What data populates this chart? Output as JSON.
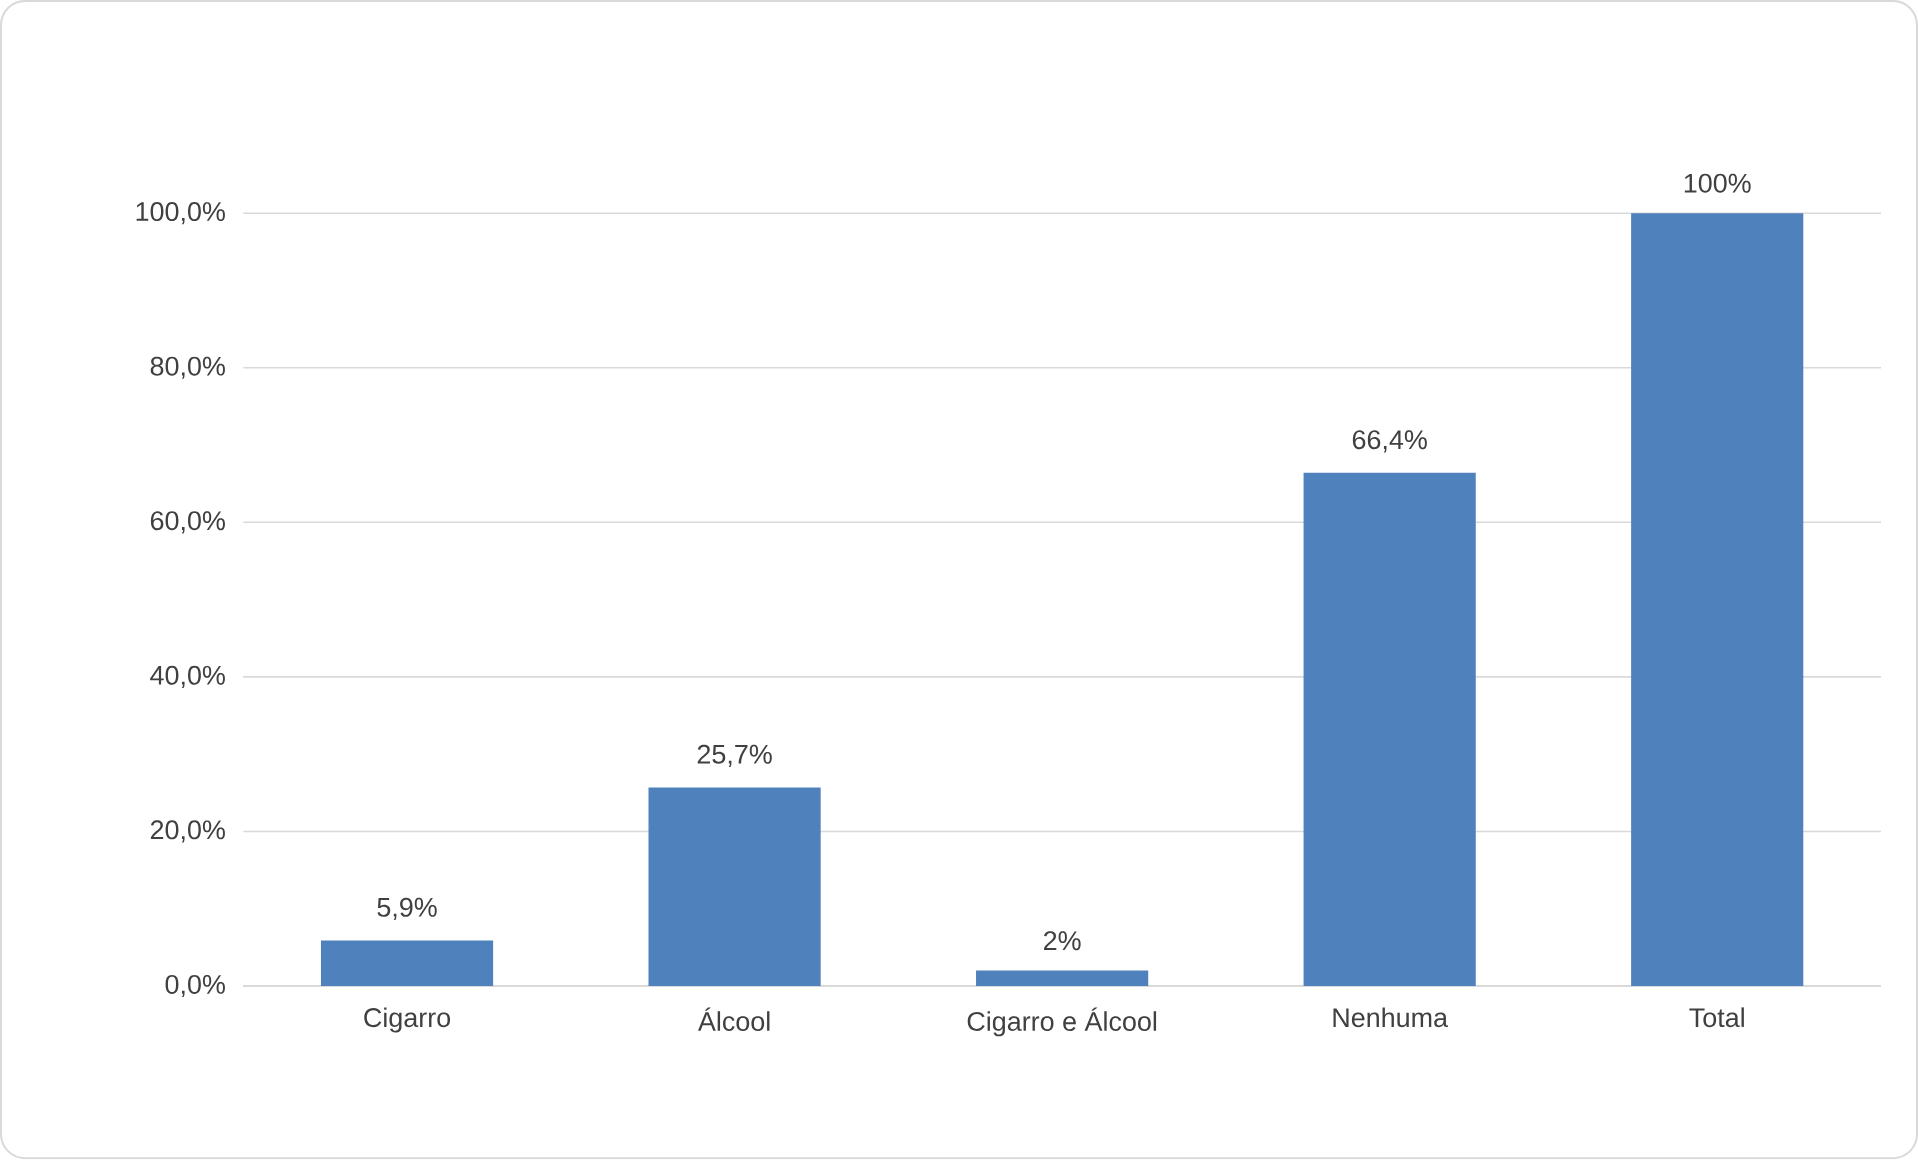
{
  "chart_data": {
    "type": "bar",
    "categories": [
      "Cigarro",
      "Álcool",
      "Cigarro e Álcool",
      "Nenhuma",
      "Total"
    ],
    "values": [
      5.9,
      25.7,
      2,
      66.4,
      100
    ],
    "value_labels": [
      "5,9%",
      "25,7%",
      "2%",
      "66,4%",
      "100%"
    ],
    "color": "#4f81bd",
    "ylim": [
      0,
      100
    ],
    "yticks": [
      {
        "value": 0,
        "label": "0,0%"
      },
      {
        "value": 20,
        "label": "20,0%"
      },
      {
        "value": 40,
        "label": "40,0%"
      },
      {
        "value": 60,
        "label": "60,0%"
      },
      {
        "value": 80,
        "label": "80,0%"
      },
      {
        "value": 100,
        "label": "100,0%"
      }
    ],
    "grid": "y"
  }
}
